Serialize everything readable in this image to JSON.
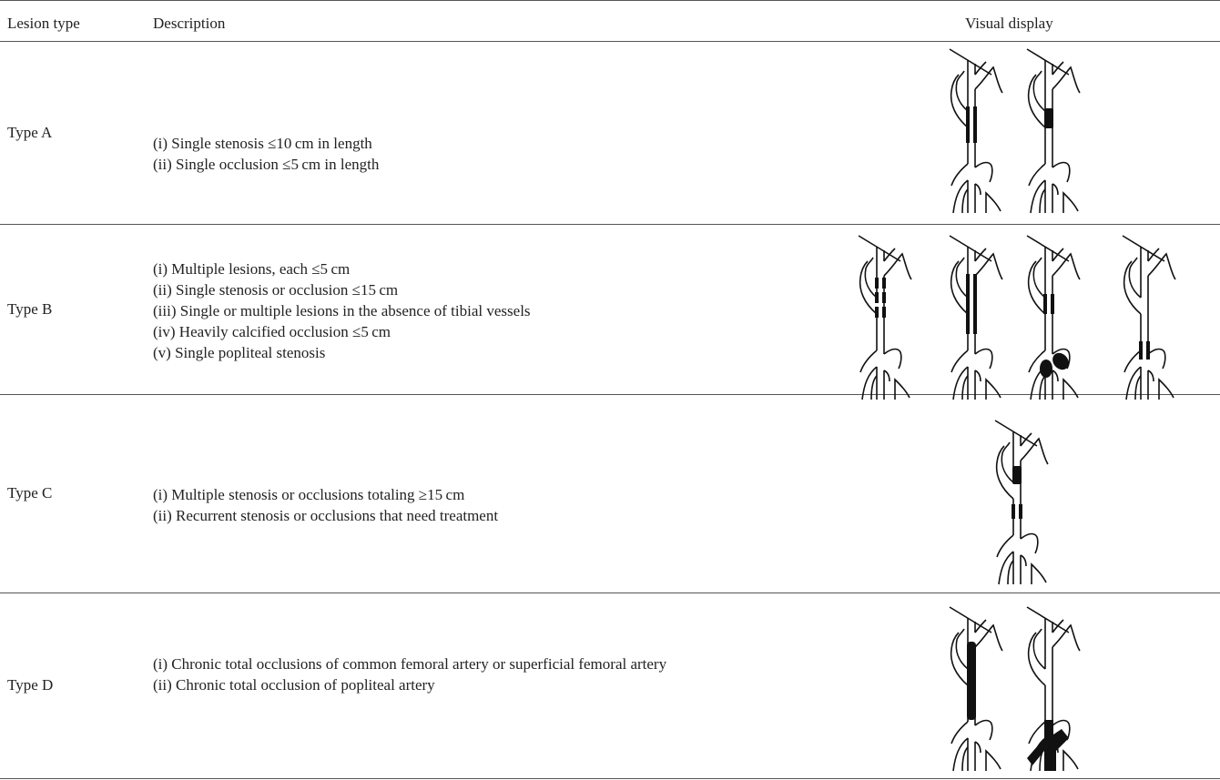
{
  "table": {
    "header": [
      "Lesion type",
      "Description",
      "Visual display"
    ],
    "rows": [
      {
        "type": "Type A",
        "items": [
          "(i) Single stenosis ≤10 cm in length",
          "(ii) Single occlusion ≤5 cm in length"
        ]
      },
      {
        "type": "Type B",
        "items": [
          "(i) Multiple lesions, each ≤5 cm",
          "(ii) Single stenosis or occlusion ≤15 cm",
          "(iii) Single or multiple lesions in the absence of tibial vessels",
          "(iv) Heavily calcified occlusion ≤5 cm",
          "(v) Single popliteal stenosis"
        ]
      },
      {
        "type": "Type C",
        "items": [
          "(i) Multiple stenosis or occlusions totaling ≥15 cm",
          "(ii) Recurrent stenosis or occlusions that need treatment"
        ]
      },
      {
        "type": "Type D",
        "items": [
          "(i) Chronic total occlusions of common femoral artery or superficial femoral artery",
          "(ii) Chronic total occlusion of popliteal artery"
        ]
      }
    ]
  }
}
